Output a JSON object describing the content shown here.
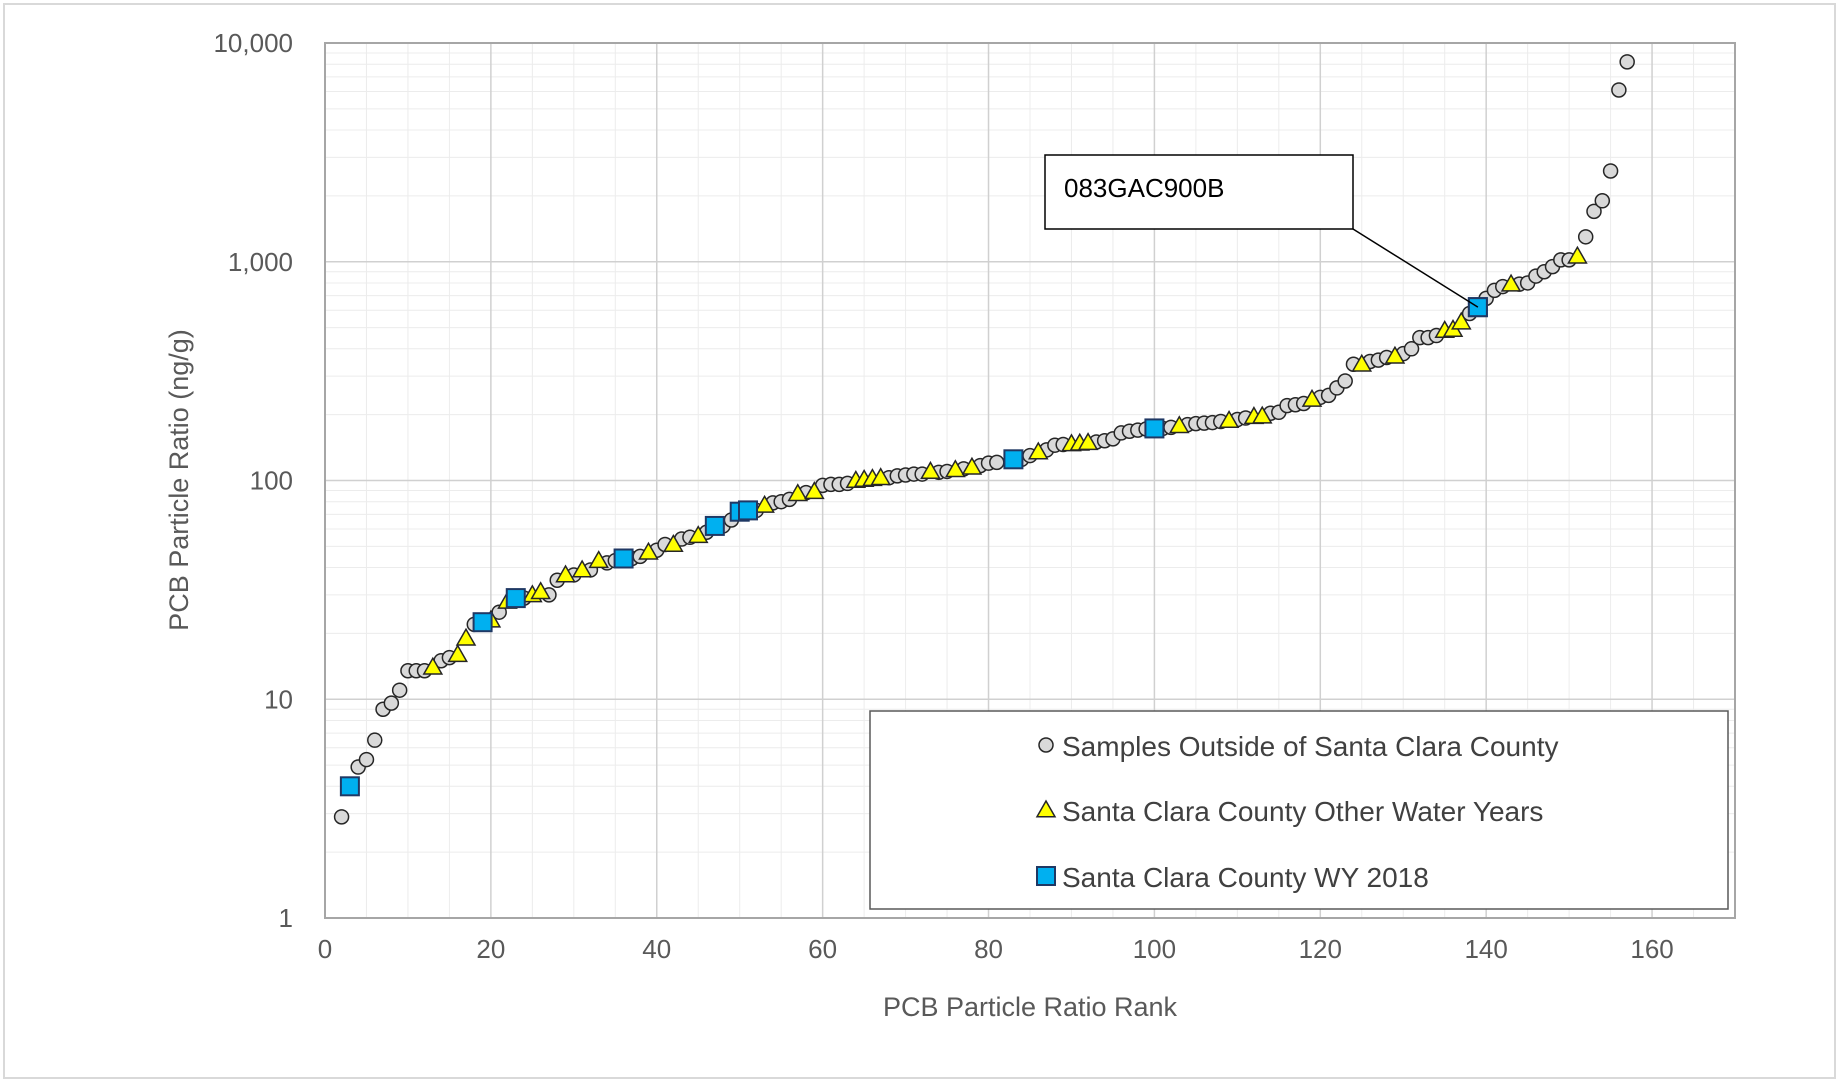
{
  "chart_data": {
    "type": "scatter",
    "title": "",
    "xlabel": "PCB Particle Ratio Rank",
    "ylabel": "PCB Particle Ratio (ng/g)",
    "xlim": [
      0,
      170
    ],
    "ylim": [
      1,
      10000
    ],
    "y_scale": "log",
    "x_ticks": [
      0,
      20,
      40,
      60,
      80,
      100,
      120,
      140,
      160
    ],
    "x_tick_labels": [
      "0",
      "20",
      "40",
      "60",
      "80",
      "100",
      "120",
      "140",
      "160"
    ],
    "y_ticks": [
      1,
      10,
      100,
      1000,
      10000
    ],
    "y_tick_labels": [
      "1",
      "10",
      "100",
      "1,000",
      "10,000"
    ],
    "grid": true,
    "legend_position": "bottom-right",
    "annotation": {
      "text": "083GAC900B",
      "x": 139,
      "y": 620
    },
    "series": [
      {
        "name": "Samples Outside of Santa Clara County",
        "marker": "circle",
        "color": "#d9d9d9",
        "points": [
          [
            2,
            2.9
          ],
          [
            4,
            4.9
          ],
          [
            5,
            5.3
          ],
          [
            6,
            6.5
          ],
          [
            7,
            9.0
          ],
          [
            8,
            9.6
          ],
          [
            9,
            11
          ],
          [
            10,
            13.5
          ],
          [
            11,
            13.5
          ],
          [
            12,
            13.5
          ],
          [
            14,
            15
          ],
          [
            15,
            15.5
          ],
          [
            18,
            22
          ],
          [
            21,
            25
          ],
          [
            24,
            29
          ],
          [
            27,
            30
          ],
          [
            28,
            35
          ],
          [
            30,
            37
          ],
          [
            32,
            39
          ],
          [
            34,
            42
          ],
          [
            35,
            43
          ],
          [
            37,
            44
          ],
          [
            38,
            45
          ],
          [
            40,
            48
          ],
          [
            41,
            51
          ],
          [
            43,
            54
          ],
          [
            44,
            55
          ],
          [
            46,
            58
          ],
          [
            48,
            62
          ],
          [
            49,
            66
          ],
          [
            52,
            73
          ],
          [
            54,
            79
          ],
          [
            55,
            80
          ],
          [
            56,
            82
          ],
          [
            58,
            88
          ],
          [
            60,
            95
          ],
          [
            61,
            96
          ],
          [
            62,
            96
          ],
          [
            63,
            97
          ],
          [
            68,
            103
          ],
          [
            69,
            105
          ],
          [
            70,
            106
          ],
          [
            71,
            107
          ],
          [
            72,
            107
          ],
          [
            74,
            109
          ],
          [
            75,
            110
          ],
          [
            77,
            113
          ],
          [
            79,
            117
          ],
          [
            80,
            120
          ],
          [
            81,
            121
          ],
          [
            84,
            125
          ],
          [
            85,
            130
          ],
          [
            87,
            138
          ],
          [
            88,
            145
          ],
          [
            89,
            146
          ],
          [
            93,
            150
          ],
          [
            94,
            152
          ],
          [
            95,
            155
          ],
          [
            96,
            165
          ],
          [
            97,
            168
          ],
          [
            98,
            170
          ],
          [
            99,
            172
          ],
          [
            101,
            173
          ],
          [
            102,
            175
          ],
          [
            104,
            180
          ],
          [
            105,
            182
          ],
          [
            106,
            183
          ],
          [
            107,
            184
          ],
          [
            108,
            186
          ],
          [
            110,
            190
          ],
          [
            111,
            193
          ],
          [
            114,
            203
          ],
          [
            115,
            205
          ],
          [
            116,
            220
          ],
          [
            117,
            222
          ],
          [
            118,
            225
          ],
          [
            120,
            240
          ],
          [
            121,
            245
          ],
          [
            122,
            265
          ],
          [
            123,
            285
          ],
          [
            124,
            340
          ],
          [
            126,
            350
          ],
          [
            127,
            355
          ],
          [
            128,
            365
          ],
          [
            130,
            380
          ],
          [
            131,
            400
          ],
          [
            132,
            450
          ],
          [
            133,
            450
          ],
          [
            134,
            460
          ],
          [
            138,
            580
          ],
          [
            140,
            680
          ],
          [
            141,
            740
          ],
          [
            142,
            770
          ],
          [
            144,
            790
          ],
          [
            145,
            800
          ],
          [
            146,
            860
          ],
          [
            147,
            900
          ],
          [
            148,
            950
          ],
          [
            149,
            1020
          ],
          [
            150,
            1020
          ],
          [
            152,
            1300
          ],
          [
            153,
            1700
          ],
          [
            154,
            1900
          ],
          [
            155,
            2600
          ],
          [
            156,
            6100
          ],
          [
            157,
            8200
          ]
        ]
      },
      {
        "name": "Santa Clara County Other Water Years",
        "marker": "triangle",
        "color": "#ffff00",
        "points": [
          [
            13,
            14
          ],
          [
            16,
            16
          ],
          [
            17,
            19
          ],
          [
            20,
            23
          ],
          [
            22,
            28
          ],
          [
            25,
            30
          ],
          [
            26,
            31
          ],
          [
            29,
            37
          ],
          [
            31,
            39
          ],
          [
            33,
            43
          ],
          [
            39,
            47
          ],
          [
            42,
            51
          ],
          [
            45,
            56
          ],
          [
            53,
            77
          ],
          [
            57,
            87
          ],
          [
            59,
            89
          ],
          [
            64,
            100
          ],
          [
            65,
            101
          ],
          [
            66,
            102
          ],
          [
            67,
            103
          ],
          [
            73,
            110
          ],
          [
            76,
            112
          ],
          [
            78,
            115
          ],
          [
            86,
            135
          ],
          [
            90,
            147
          ],
          [
            91,
            148
          ],
          [
            92,
            149
          ],
          [
            103,
            178
          ],
          [
            109,
            188
          ],
          [
            112,
            196
          ],
          [
            113,
            197
          ],
          [
            119,
            235
          ],
          [
            125,
            340
          ],
          [
            129,
            370
          ],
          [
            135,
            485
          ],
          [
            136,
            490
          ],
          [
            137,
            530
          ],
          [
            143,
            790
          ],
          [
            151,
            1060
          ]
        ]
      },
      {
        "name": "Santa Clara County WY 2018",
        "marker": "square",
        "color": "#00b0f0",
        "points": [
          [
            3,
            4.0
          ],
          [
            19,
            22.5
          ],
          [
            23,
            29
          ],
          [
            36,
            44
          ],
          [
            47,
            62
          ],
          [
            50,
            72
          ],
          [
            51,
            73
          ],
          [
            83,
            125
          ],
          [
            100,
            173
          ],
          [
            139,
            620
          ]
        ]
      }
    ]
  }
}
